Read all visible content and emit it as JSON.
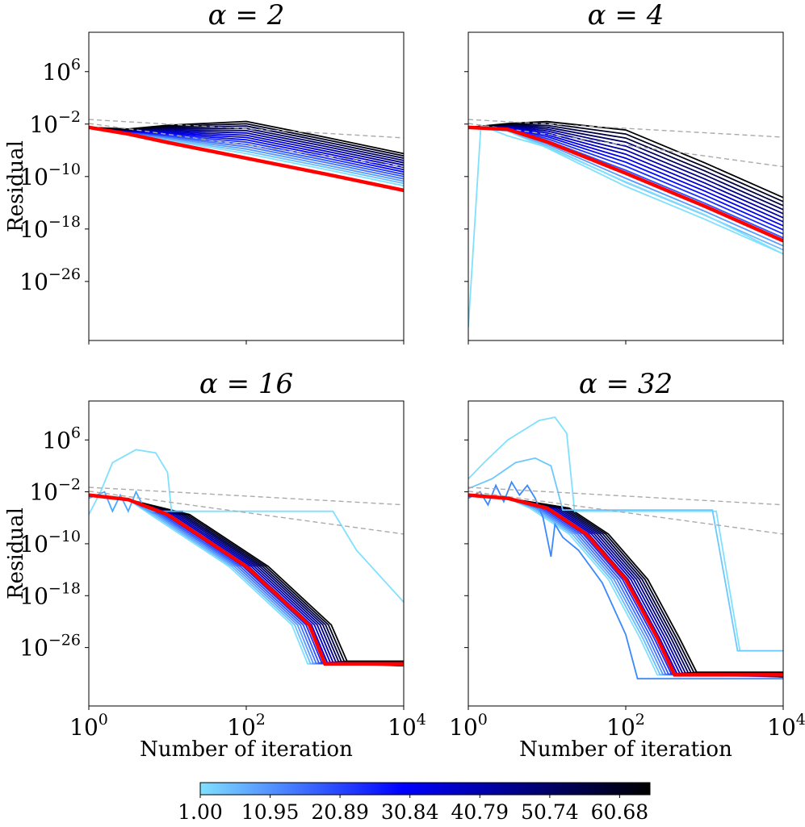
{
  "chart_data": [
    {
      "type": "line",
      "title": "α = 2",
      "alpha": 2,
      "xlabel": "",
      "ylabel": "Residual",
      "xscale": "log",
      "yscale": "log",
      "xlim_exp": [
        0,
        4
      ],
      "ylim_exp": [
        -35,
        12
      ],
      "ytick_exps": [
        6,
        -2,
        -10,
        -18,
        -26
      ],
      "ytick_labels": [
        "10^6",
        "10^-2",
        "10^-10",
        "10^-18",
        "10^-26"
      ],
      "xtick_labels": [],
      "highlight_series": {
        "name": "red",
        "points_log10": [
          [
            0,
            -2.5
          ],
          [
            0.5,
            -3.5
          ],
          [
            1,
            -4.8
          ],
          [
            2,
            -7.2
          ],
          [
            3,
            -9.6
          ],
          [
            4,
            -12.1
          ]
        ]
      },
      "reference_lines": [
        {
          "style": "dashed-gray",
          "points_log10": [
            [
              0,
              -1.3
            ],
            [
              4,
              -4.1
            ]
          ]
        },
        {
          "style": "dashed-gray",
          "points_log10": [
            [
              0,
              -1.9
            ],
            [
              4,
              -8.5
            ]
          ]
        }
      ],
      "series_family": {
        "count": 15,
        "color_range": [
          "light-blue",
          "black"
        ],
        "end_range_log10": [
          -11.4,
          -6.5
        ]
      }
    },
    {
      "type": "line",
      "title": "α = 4",
      "alpha": 4,
      "xlabel": "",
      "ylabel": "",
      "xscale": "log",
      "yscale": "log",
      "xlim_exp": [
        0,
        4
      ],
      "ylim_exp": [
        -35,
        12
      ],
      "ytick_exps": [
        6,
        -2,
        -10,
        -18,
        -26
      ],
      "ytick_labels": [],
      "xtick_labels": [],
      "highlight_series": {
        "name": "red",
        "points_log10": [
          [
            0,
            -2.5
          ],
          [
            0.5,
            -2.8
          ],
          [
            1,
            -4.7
          ],
          [
            2,
            -9.5
          ],
          [
            3,
            -14.5
          ],
          [
            4,
            -19.8
          ]
        ]
      },
      "reference_lines": [
        {
          "style": "dashed-gray",
          "points_log10": [
            [
              0,
              -1.3
            ],
            [
              4,
              -4.0
            ]
          ]
        },
        {
          "style": "dashed-gray",
          "points_log10": [
            [
              0,
              -1.9
            ],
            [
              4,
              -8.5
            ]
          ]
        }
      ],
      "series_family": {
        "count": 15,
        "color_range": [
          "light-blue",
          "black"
        ],
        "end_range_log10": [
          -21.8,
          -13.2
        ]
      }
    },
    {
      "type": "line",
      "title": "α = 16",
      "alpha": 16,
      "xlabel": "Number of iteration",
      "ylabel": "Residual",
      "xscale": "log",
      "yscale": "log",
      "xlim_exp": [
        0,
        4
      ],
      "ylim_exp": [
        -35,
        12
      ],
      "ytick_exps": [
        6,
        -2,
        -10,
        -18,
        -26
      ],
      "ytick_labels": [
        "10^6",
        "10^-2",
        "10^-10",
        "10^-18",
        "10^-26"
      ],
      "xtick_exps": [
        0,
        2,
        4
      ],
      "xtick_labels": [
        "10^0",
        "10^2",
        "10^4"
      ],
      "highlight_series": {
        "name": "red",
        "points_log10": [
          [
            0,
            -2.5
          ],
          [
            0.5,
            -3.2
          ],
          [
            1,
            -5.5
          ],
          [
            2,
            -13.5
          ],
          [
            2.8,
            -22.5
          ],
          [
            3.0,
            -28.5
          ],
          [
            4,
            -28.5
          ]
        ]
      },
      "reference_lines": [
        {
          "style": "dashed-gray",
          "points_log10": [
            [
              0,
              -1.3
            ],
            [
              4,
              -4.0
            ]
          ]
        },
        {
          "style": "dashed-gray",
          "points_log10": [
            [
              0,
              -1.9
            ],
            [
              4,
              -8.5
            ]
          ]
        }
      ],
      "series_family": {
        "count": 15,
        "color_range": [
          "light-blue",
          "black"
        ],
        "floor_log10": -28.5
      }
    },
    {
      "type": "line",
      "title": "α = 32",
      "alpha": 32,
      "xlabel": "Number of iteration",
      "ylabel": "",
      "xscale": "log",
      "yscale": "log",
      "xlim_exp": [
        0,
        4
      ],
      "ylim_exp": [
        -35,
        12
      ],
      "ytick_exps": [
        6,
        -2,
        -10,
        -18,
        -26
      ],
      "ytick_labels": [],
      "xtick_exps": [
        0,
        2,
        4
      ],
      "xtick_labels": [
        "10^0",
        "10^2",
        "10^4"
      ],
      "highlight_series": {
        "name": "red",
        "points_log10": [
          [
            0,
            -2.5
          ],
          [
            0.5,
            -3.0
          ],
          [
            1,
            -4.5
          ],
          [
            1.5,
            -8.5
          ],
          [
            2,
            -15.5
          ],
          [
            2.4,
            -24.5
          ],
          [
            2.62,
            -30.2
          ],
          [
            4,
            -30.2
          ]
        ]
      },
      "reference_lines": [
        {
          "style": "dashed-gray",
          "points_log10": [
            [
              0,
              -1.3
            ],
            [
              4,
              -4.0
            ]
          ]
        },
        {
          "style": "dashed-gray",
          "points_log10": [
            [
              0,
              -1.9
            ],
            [
              4,
              -8.5
            ]
          ]
        }
      ],
      "series_family": {
        "count": 15,
        "color_range": [
          "light-blue",
          "black"
        ],
        "floor_log10": -30.2
      }
    }
  ],
  "colorbar": {
    "min": 1.0,
    "max": 65.0,
    "tick_labels": [
      "1.00",
      "10.95",
      "20.89",
      "30.84",
      "40.79",
      "50.74",
      "60.68"
    ],
    "tick_values": [
      1.0,
      10.95,
      20.89,
      30.84,
      40.79,
      50.74,
      60.68
    ],
    "colors": [
      "#7fe0ff",
      "#0000ff",
      "#000000"
    ]
  },
  "colors": {
    "highlight": "#ff0000",
    "reference": "#aaaaaa",
    "light": "#7fe0ff",
    "mid": "#1f5cff",
    "dark": "#000000"
  }
}
